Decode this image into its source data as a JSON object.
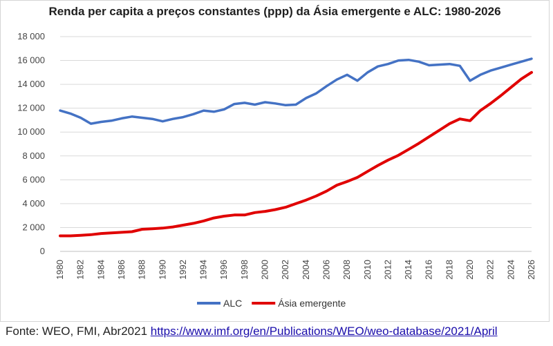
{
  "footer": {
    "source_text": "Fonte: WEO, FMI, Abr2021",
    "link_text": "https://www.imf.org/en/Publications/WEO/weo-database/2021/April"
  },
  "chart_data": {
    "type": "line",
    "title": "Renda per capita a preços constantes (ppp) da Ásia emergente e ALC: 1980-2026",
    "xlabel": "",
    "ylabel": "",
    "ylim": [
      0,
      18000
    ],
    "yticks": [
      "0",
      "2 000",
      "4 000",
      "6 000",
      "8 000",
      "10 000",
      "12 000",
      "14 000",
      "16 000",
      "18 000"
    ],
    "xticks": [
      "1980",
      "1982",
      "1984",
      "1986",
      "1988",
      "1990",
      "1992",
      "1994",
      "1996",
      "1998",
      "2000",
      "2002",
      "2004",
      "2006",
      "2008",
      "2010",
      "2012",
      "2014",
      "2016",
      "2018",
      "2020",
      "2022",
      "2024",
      "2026"
    ],
    "grid": "horizontal",
    "legend": "bottom",
    "x": [
      1980,
      1981,
      1982,
      1983,
      1984,
      1985,
      1986,
      1987,
      1988,
      1989,
      1990,
      1991,
      1992,
      1993,
      1994,
      1995,
      1996,
      1997,
      1998,
      1999,
      2000,
      2001,
      2002,
      2003,
      2004,
      2005,
      2006,
      2007,
      2008,
      2009,
      2010,
      2011,
      2012,
      2013,
      2014,
      2015,
      2016,
      2017,
      2018,
      2019,
      2020,
      2021,
      2022,
      2023,
      2024,
      2025,
      2026
    ],
    "series": [
      {
        "name": "ALC",
        "color": "#4472c4",
        "values": [
          11800,
          11550,
          11200,
          10700,
          10850,
          10950,
          11150,
          11300,
          11200,
          11100,
          10900,
          11100,
          11250,
          11500,
          11800,
          11700,
          11900,
          12350,
          12450,
          12300,
          12500,
          12400,
          12250,
          12300,
          12850,
          13250,
          13850,
          14400,
          14800,
          14300,
          15000,
          15500,
          15700,
          16000,
          16050,
          15900,
          15600,
          15650,
          15700,
          15550,
          14300,
          14800,
          15150,
          15400,
          15650,
          15900,
          16150
        ]
      },
      {
        "name": "Ásia emergente",
        "color": "#e00000",
        "values": [
          1300,
          1300,
          1350,
          1400,
          1500,
          1550,
          1600,
          1650,
          1850,
          1900,
          1950,
          2050,
          2200,
          2350,
          2550,
          2800,
          2950,
          3050,
          3050,
          3250,
          3350,
          3500,
          3700,
          4000,
          4300,
          4650,
          5050,
          5550,
          5850,
          6200,
          6700,
          7200,
          7650,
          8050,
          8550,
          9050,
          9600,
          10150,
          10700,
          11100,
          10950,
          11800,
          12400,
          13050,
          13750,
          14450,
          15000
        ]
      }
    ]
  }
}
